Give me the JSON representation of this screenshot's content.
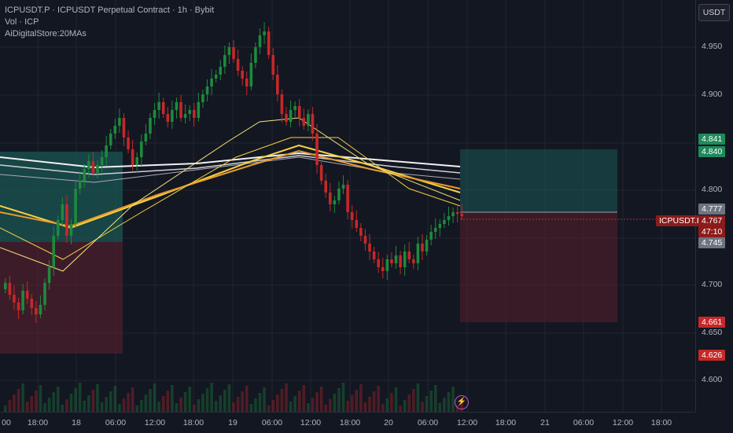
{
  "legend": {
    "line1": "ICPUSDT.P · ICPUSDT Perpetual Contract · 1h · Bybit",
    "line2": "Vol · ICP",
    "line3": "AiDigitalStore:20MAs"
  },
  "currency_label": "USDT",
  "price_axis": {
    "ticks": [
      "4.950",
      "4.900",
      "4.800",
      "4.700",
      "4.650",
      "4.600"
    ]
  },
  "time_axis": {
    "ticks": [
      "00",
      "18:00",
      "18",
      "06:00",
      "12:00",
      "18:00",
      "19",
      "06:00",
      "12:00",
      "18:00",
      "20",
      "06:00",
      "12:00",
      "18:00",
      "21",
      "06:00",
      "12:00",
      "18:00"
    ]
  },
  "price_tags": {
    "tp_top": "4.841",
    "tp_bottom": "4.840",
    "entry": "4.777",
    "current": "4.767",
    "countdown": "47:10",
    "ma": "4.745",
    "sl_top": "4.661",
    "sl_bottom": "4.626"
  },
  "symbol_tag": "ICPUSDT.P",
  "colors": {
    "background": "#131722",
    "bull": "#1e8a3c",
    "bear": "#c62828",
    "tp_zone": "#1b5e5a",
    "sl_zone": "#5a1f2e",
    "ma_white": "#f0f0f0",
    "ma_yellow": "#f5d142",
    "ma_orange": "#e89a2c"
  },
  "icons": {
    "event_icon": "lightning-icon"
  }
}
